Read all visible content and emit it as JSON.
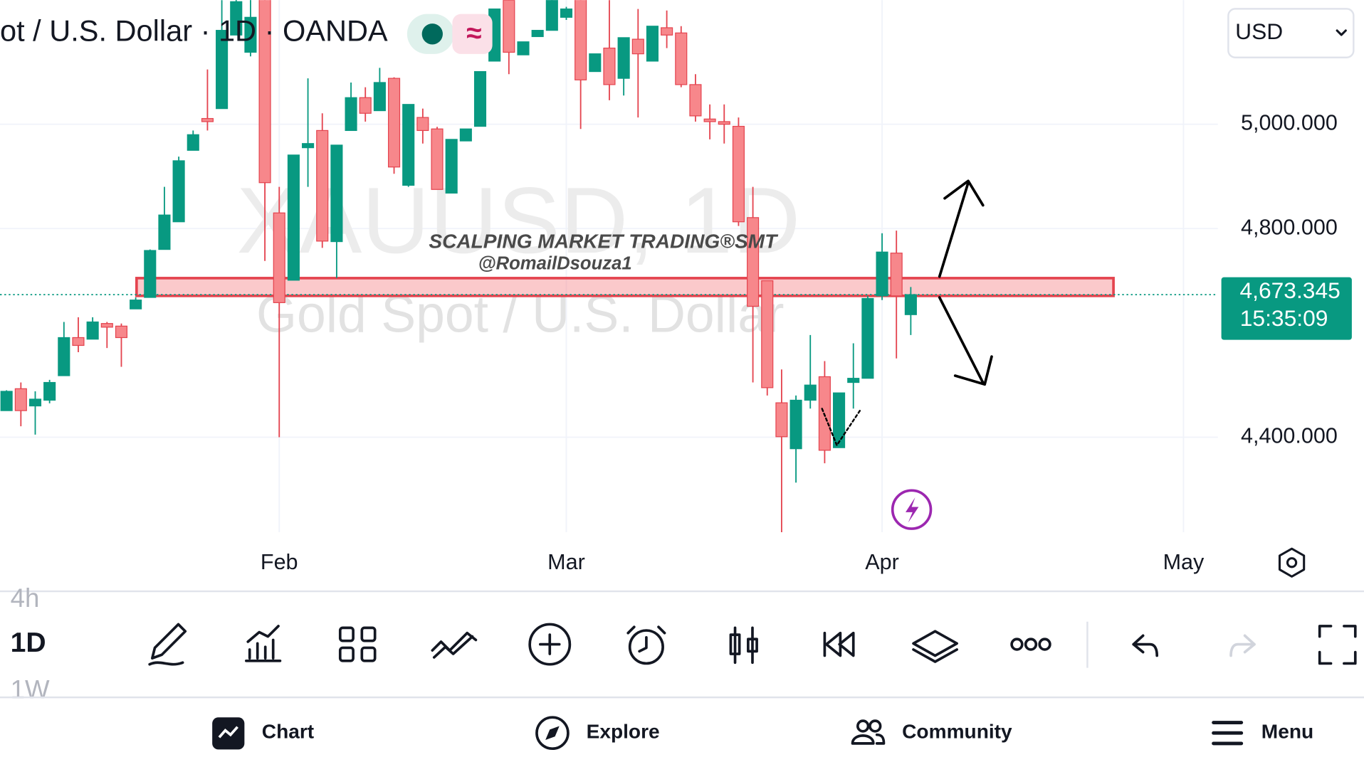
{
  "header": {
    "symbol_title": "ot / U.S. Dollar · 1D · OANDA",
    "currency": "USD"
  },
  "watermark": {
    "symbol": "XAUUSD, 1D",
    "name": "Gold Spot / U.S. Dollar"
  },
  "overlay_text": [
    "SCALPING MARKET TRADING®SMT",
    "@RomailDsouza1"
  ],
  "countdown": "15:35:09",
  "timeframes": [
    "4h",
    "1D",
    "1W"
  ],
  "nav": [
    "Chart",
    "Explore",
    "Community",
    "Menu"
  ],
  "chart_data": {
    "type": "candlestick",
    "categories": [
      null,
      null,
      null,
      null,
      null,
      null,
      null,
      null,
      null,
      null,
      null,
      null,
      null,
      null,
      null,
      null,
      null,
      null,
      null,
      "Feb",
      null,
      null,
      null,
      null,
      null,
      null,
      null,
      null,
      null,
      null,
      null,
      null,
      null,
      null,
      null,
      null,
      null,
      null,
      null,
      "Mar",
      null,
      null,
      null,
      null,
      null,
      null,
      null,
      null,
      null,
      null,
      null,
      null,
      null,
      null,
      null,
      null,
      null,
      null,
      null,
      null,
      null,
      "Apr",
      null,
      null,
      null,
      null,
      null,
      null,
      null,
      null,
      null,
      null,
      null,
      null,
      null,
      null,
      null,
      null,
      null,
      null,
      null,
      null,
      "May"
    ],
    "open": [
      4451,
      4493,
      4460,
      4471,
      4518,
      4591,
      4588,
      4618,
      4613,
      4646,
      4668,
      4760,
      4813,
      4950,
      5011,
      5030,
      5171,
      5138,
      5245,
      4830,
      4701,
      4955,
      4988,
      4775,
      4988,
      5051,
      5026,
      5088,
      4883,
      5013,
      4991,
      4868,
      4968,
      4996,
      5121,
      5238,
      5133,
      5168,
      5180,
      5205,
      5245,
      5101,
      5146,
      5088,
      5163,
      5121,
      5185,
      5175,
      5076,
      5010,
      5005,
      4996,
      4821,
      4700,
      4466,
      4378,
      4471,
      4516,
      4380,
      4505,
      4513,
      4671,
      4753,
      4635,
      null,
      null,
      null,
      null,
      null,
      null,
      null,
      null,
      null,
      null,
      null,
      null,
      null,
      null,
      null,
      null,
      null,
      null,
      null
    ],
    "high": [
      4490,
      4505,
      4488,
      4510,
      4621,
      4630,
      4630,
      4621,
      4618,
      4668,
      4760,
      4880,
      4938,
      4988,
      5105,
      5238,
      5260,
      5250,
      5260,
      4880,
      4941,
      5088,
      5021,
      4960,
      5080,
      5071,
      5108,
      5090,
      5038,
      5030,
      4995,
      4971,
      4991,
      5101,
      5221,
      5250,
      5158,
      5180,
      5250,
      5225,
      5260,
      5135,
      5238,
      5166,
      5221,
      5188,
      5218,
      5188,
      5096,
      5038,
      5038,
      5013,
      4880,
      4700,
      4530,
      4480,
      4596,
      4546,
      4485,
      4580,
      4671,
      4791,
      4796,
      4688,
      null,
      null,
      null,
      null,
      null,
      null,
      null,
      null,
      null,
      null,
      null,
      null,
      null,
      null,
      null,
      null,
      null,
      null,
      null
    ],
    "low": [
      4451,
      4421,
      4405,
      4465,
      4518,
      4563,
      4588,
      4571,
      4535,
      4646,
      4668,
      4760,
      4813,
      4950,
      4988,
      5030,
      5171,
      5130,
      4738,
      4400,
      4701,
      4880,
      4763,
      4705,
      4988,
      5005,
      5026,
      4905,
      4880,
      4963,
      4875,
      4868,
      4968,
      4996,
      5121,
      5096,
      5133,
      5168,
      5180,
      5200,
      4991,
      5101,
      5046,
      5055,
      5013,
      5121,
      5146,
      5071,
      5005,
      4971,
      4963,
      4805,
      4505,
      4480,
      4218,
      4313,
      4455,
      4350,
      4380,
      4455,
      4513,
      4663,
      4551,
      4596,
      null,
      null,
      null,
      null,
      null,
      null,
      null,
      null,
      null,
      null,
      null,
      null,
      null,
      null,
      null,
      null,
      null,
      null,
      null
    ],
    "close": [
      4488,
      4451,
      4473,
      4505,
      4591,
      4576,
      4621,
      4611,
      4591,
      4663,
      4758,
      4826,
      4930,
      4980,
      5005,
      5180,
      5235,
      5205,
      4888,
      4658,
      4941,
      4963,
      4776,
      4960,
      5051,
      5021,
      5080,
      4918,
      5038,
      4988,
      4875,
      4971,
      4991,
      5101,
      5221,
      5138,
      5158,
      5180,
      5240,
      5221,
      5085,
      5135,
      5076,
      5166,
      5135,
      5188,
      5171,
      5076,
      5016,
      5005,
      5000,
      4813,
      4651,
      4495,
      4401,
      4471,
      4500,
      4375,
      4485,
      4513,
      4666,
      4755,
      4671,
      4673.345,
      null,
      null,
      null,
      null,
      null,
      null,
      null,
      null,
      null,
      null,
      null,
      null,
      null,
      null,
      null,
      null,
      null,
      null,
      null
    ],
    "up_color": "#089981",
    "down_color": "#f7878b",
    "ylim": [
      4218,
      5238
    ],
    "yticks": [
      {
        "value": 4400,
        "label": "4,400.000"
      },
      {
        "value": 4800,
        "label": "4,800.000"
      },
      {
        "value": 5000,
        "label": "5,000.000"
      }
    ],
    "grid": true,
    "last_price": {
      "value": 4673.345,
      "label": "4,673.345"
    },
    "zone": {
      "low": 4671,
      "high": 4705
    }
  }
}
